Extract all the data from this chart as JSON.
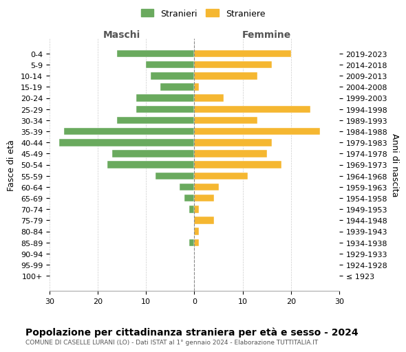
{
  "age_groups": [
    "100+",
    "95-99",
    "90-94",
    "85-89",
    "80-84",
    "75-79",
    "70-74",
    "65-69",
    "60-64",
    "55-59",
    "50-54",
    "45-49",
    "40-44",
    "35-39",
    "30-34",
    "25-29",
    "20-24",
    "15-19",
    "10-14",
    "5-9",
    "0-4"
  ],
  "birth_years": [
    "≤ 1923",
    "1924-1928",
    "1929-1933",
    "1934-1938",
    "1939-1943",
    "1944-1948",
    "1949-1953",
    "1954-1958",
    "1959-1963",
    "1964-1968",
    "1969-1973",
    "1974-1978",
    "1979-1983",
    "1984-1988",
    "1989-1993",
    "1994-1998",
    "1999-2003",
    "2004-2008",
    "2009-2013",
    "2014-2018",
    "2019-2023"
  ],
  "males": [
    0,
    0,
    0,
    1,
    0,
    0,
    1,
    2,
    3,
    8,
    18,
    17,
    28,
    27,
    16,
    12,
    12,
    7,
    9,
    10,
    16
  ],
  "females": [
    0,
    0,
    0,
    1,
    1,
    4,
    1,
    4,
    5,
    11,
    18,
    15,
    16,
    26,
    13,
    24,
    6,
    1,
    13,
    16,
    20
  ],
  "male_color": "#6aaa5e",
  "female_color": "#f5b731",
  "center_line_color": "#888888",
  "grid_color": "#cccccc",
  "background_color": "#ffffff",
  "title": "Popolazione per cittadinanza straniera per età e sesso - 2024",
  "subtitle": "COMUNE DI CASELLE LURANI (LO) - Dati ISTAT al 1° gennaio 2024 - Elaborazione TUTTITALIA.IT",
  "xlabel_left": "Maschi",
  "xlabel_right": "Femmine",
  "ylabel_left": "Fasce di età",
  "ylabel_right": "Anni di nascita",
  "legend_male": "Stranieri",
  "legend_female": "Straniere",
  "xlim": 30,
  "tick_fontsize": 8,
  "label_fontsize": 9,
  "title_fontsize": 10
}
